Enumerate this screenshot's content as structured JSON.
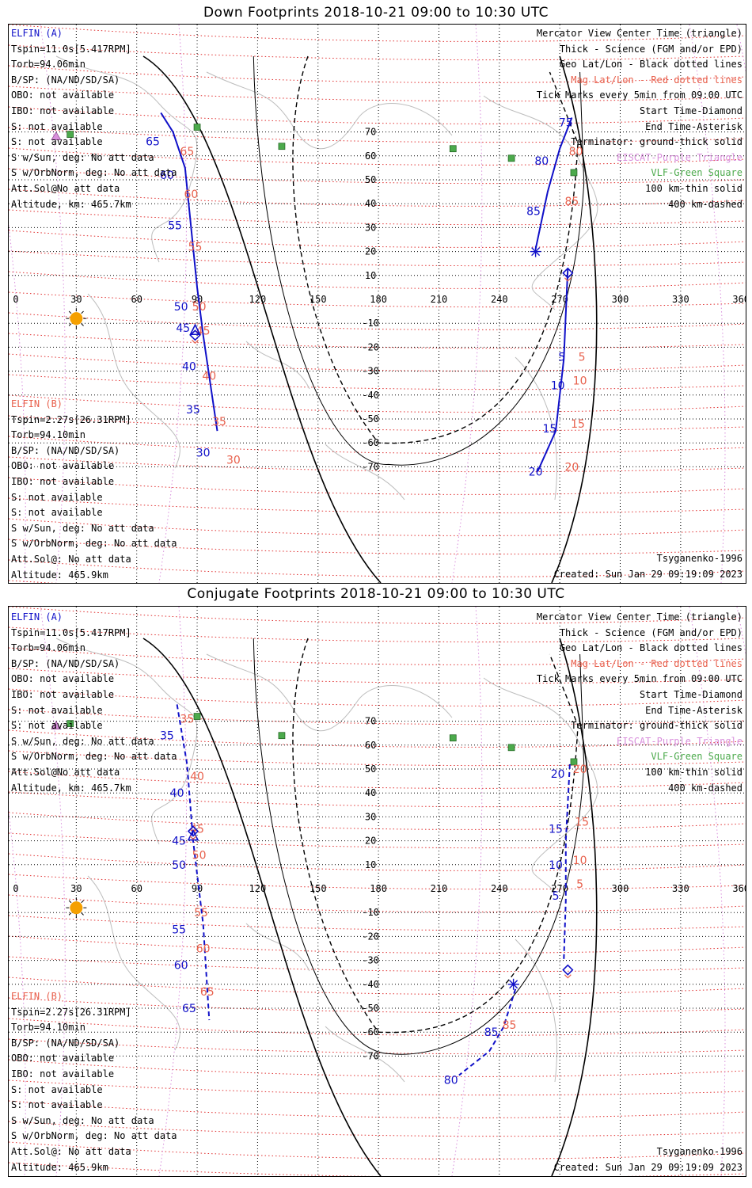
{
  "colors": {
    "blue": "#1010c8",
    "orange": "#e8604c",
    "violet": "#d98fdc",
    "green": "#4caa4c",
    "sun": "#f5a000"
  },
  "footer": {
    "model": "Tsyganenko-1996",
    "created": "Created: Sun Jan 29 09:19:09 2023"
  },
  "info_a": [
    "ELFIN (A)",
    "Tspin=11.0s[5.417RPM]",
    "Torb=94.06min",
    "B/SP: (NA/ND/SD/SA)",
    "OBO: not available",
    "IBO: not available",
    "S: not available",
    "S: not available",
    "S w/Sun, deg: No att data",
    "S w/OrbNorm, deg: No att data",
    "Att.Sol@No att data",
    "Altitude, km: 465.7km"
  ],
  "info_b": [
    "ELFIN (B)",
    "Tspin=2.27s[26.31RPM]",
    "Torb=94.10min",
    "B/SP: (NA/ND/SD/SA)",
    "OBO: not available",
    "IBO: not available",
    "S: not available",
    "S: not available",
    "S w/Sun, deg: No att data",
    "S w/OrbNorm, deg: No att data",
    "Att.Sol@: No att data",
    "Altitude: 465.9km"
  ],
  "legend": [
    "Mercator View Center Time (triangle)",
    "Thick - Science (FGM and/or EPD)",
    "Geo Lat/Lon - Black dotted lines",
    "Mag Lat/Lon - Red dotted lines",
    "Tick Marks every 5min from 09:00 UTC",
    "Start Time-Diamond",
    "End Time-Asterisk",
    "Terminator: ground-thick solid",
    "EISCAT-Purple Triangle",
    "VLF-Green Square",
    "100 km-thin solid",
    "400 km-dashed"
  ],
  "chart_data": [
    {
      "type": "map",
      "title": "Down Footprints 2018-10-21 09:00 to 10:30 UTC",
      "x_ticks": [
        "0",
        "30",
        "60",
        "90",
        "120",
        "150",
        "180",
        "210",
        "240",
        "270",
        "300",
        "330",
        "360"
      ],
      "y_ticks": [
        "70",
        "60",
        "50",
        "40",
        "30",
        "20",
        "10",
        "-10",
        "-20",
        "-30",
        "-40",
        "-50",
        "-60",
        "-70"
      ],
      "vlf_sites": [
        [
          90,
          72
        ],
        [
          27,
          69
        ],
        [
          132,
          64
        ],
        [
          217,
          63
        ],
        [
          246,
          59
        ],
        [
          277,
          53
        ]
      ],
      "eiscat_site": [
        20,
        68
      ],
      "sun": [
        30,
        -8
      ],
      "elfin_a": {
        "track": [
          [
            72,
            78
          ],
          [
            78,
            70
          ],
          [
            84,
            55
          ],
          [
            90,
            5
          ],
          [
            93,
            -15
          ],
          [
            100,
            -55
          ]
        ],
        "blue_ticks": [
          {
            "l": "65",
            "lon": 68,
            "lat": 66
          },
          {
            "l": "60",
            "lon": 75,
            "lat": 52
          },
          {
            "l": "55",
            "lon": 79,
            "lat": 31
          },
          {
            "l": "50",
            "lon": 82,
            "lat": -3
          },
          {
            "l": "45",
            "lon": 83,
            "lat": -12
          },
          {
            "l": "40",
            "lon": 86,
            "lat": -28
          },
          {
            "l": "35",
            "lon": 88,
            "lat": -46
          },
          {
            "l": "30",
            "lon": 93,
            "lat": -64
          }
        ],
        "red_ticks": [
          {
            "l": "65",
            "lon": 85,
            "lat": 62
          },
          {
            "l": "60",
            "lon": 87,
            "lat": 44
          },
          {
            "l": "55",
            "lon": 89,
            "lat": 22
          },
          {
            "l": "50",
            "lon": 91,
            "lat": -3
          },
          {
            "l": "45",
            "lon": 93,
            "lat": -13
          },
          {
            "l": "40",
            "lon": 96,
            "lat": -32
          },
          {
            "l": "35",
            "lon": 101,
            "lat": -51
          },
          {
            "l": "30",
            "lon": 108,
            "lat": -67
          }
        ],
        "triangle": [
          89,
          -13
        ],
        "diamond": [
          89,
          -15
        ]
      },
      "elfin_b": {
        "track": [
          [
            258,
            21
          ],
          [
            264,
            45
          ],
          [
            270,
            63
          ],
          [
            276,
            76
          ]
        ],
        "track2": [
          [
            274,
            13
          ],
          [
            272,
            -25
          ],
          [
            268,
            -55
          ],
          [
            259,
            -72
          ]
        ],
        "blue_ticks": [
          {
            "l": "75",
            "lon": 273,
            "lat": 74
          },
          {
            "l": "80",
            "lon": 261,
            "lat": 58
          },
          {
            "l": "85",
            "lon": 257,
            "lat": 37
          },
          {
            "l": "5",
            "lon": 271,
            "lat": -24
          },
          {
            "l": "10",
            "lon": 269,
            "lat": -36
          },
          {
            "l": "15",
            "lon": 265,
            "lat": -54
          },
          {
            "l": "20",
            "lon": 258,
            "lat": -72
          }
        ],
        "red_ticks": [
          {
            "l": "80",
            "lon": 278,
            "lat": 62
          },
          {
            "l": "85",
            "lon": 276,
            "lat": 41
          },
          {
            "l": "5",
            "lon": 281,
            "lat": -24
          },
          {
            "l": "10",
            "lon": 280,
            "lat": -34
          },
          {
            "l": "15",
            "lon": 279,
            "lat": -52
          },
          {
            "l": "20",
            "lon": 276,
            "lat": -70
          }
        ],
        "asterisk": [
          258,
          20
        ],
        "diamond": [
          274,
          11
        ]
      }
    },
    {
      "type": "map",
      "title": "Conjugate Footprints 2018-10-21 09:00 to 10:30 UTC",
      "x_ticks": [
        "0",
        "30",
        "60",
        "90",
        "120",
        "150",
        "180",
        "210",
        "240",
        "270",
        "300",
        "330",
        "360"
      ],
      "y_ticks": [
        "70",
        "60",
        "50",
        "40",
        "30",
        "20",
        "10",
        "-10",
        "-20",
        "-30",
        "-40",
        "-50",
        "-60",
        "-70"
      ],
      "vlf_sites": [
        [
          90,
          72
        ],
        [
          27,
          69
        ],
        [
          132,
          64
        ],
        [
          217,
          63
        ],
        [
          246,
          59
        ],
        [
          277,
          53
        ]
      ],
      "eiscat_site": [
        20,
        68
      ],
      "sun": [
        30,
        -8
      ],
      "elfin_a": {
        "track": [
          [
            80,
            77
          ],
          [
            85,
            52
          ],
          [
            88,
            20
          ],
          [
            93,
            -15
          ],
          [
            96,
            -55
          ]
        ],
        "blue_ticks": [
          {
            "l": "35",
            "lon": 75,
            "lat": 64
          },
          {
            "l": "40",
            "lon": 80,
            "lat": 40
          },
          {
            "l": "45",
            "lon": 81,
            "lat": 20
          },
          {
            "l": "50",
            "lon": 81,
            "lat": 10
          },
          {
            "l": "55",
            "lon": 81,
            "lat": -17
          },
          {
            "l": "60",
            "lon": 82,
            "lat": -32
          },
          {
            "l": "65",
            "lon": 86,
            "lat": -50
          }
        ],
        "red_ticks": [
          {
            "l": "35",
            "lon": 85,
            "lat": 71
          },
          {
            "l": "40",
            "lon": 90,
            "lat": 47
          },
          {
            "l": "45",
            "lon": 90,
            "lat": 25
          },
          {
            "l": "50",
            "lon": 91,
            "lat": 14
          },
          {
            "l": "55",
            "lon": 92,
            "lat": -10
          },
          {
            "l": "60",
            "lon": 93,
            "lat": -25
          },
          {
            "l": "65",
            "lon": 95,
            "lat": -43
          }
        ],
        "triangle": [
          88,
          22
        ],
        "diamond": [
          88,
          24
        ]
      },
      "elfin_b": {
        "track": [
          [
            275,
            52
          ],
          [
            273,
            20
          ],
          [
            273,
            -5
          ],
          [
            272,
            -30
          ]
        ],
        "track2": [
          [
            248,
            -42
          ],
          [
            242,
            -58
          ],
          [
            235,
            -68
          ],
          [
            220,
            -78
          ]
        ],
        "blue_ticks": [
          {
            "l": "20",
            "lon": 269,
            "lat": 48
          },
          {
            "l": "15",
            "lon": 268,
            "lat": 25
          },
          {
            "l": "10",
            "lon": 268,
            "lat": 10
          },
          {
            "l": "5",
            "lon": 268,
            "lat": -3
          },
          {
            "l": "85",
            "lon": 236,
            "lat": -60
          },
          {
            "l": "80",
            "lon": 216,
            "lat": -80
          }
        ],
        "red_ticks": [
          {
            "l": "20",
            "lon": 280,
            "lat": 50
          },
          {
            "l": "15",
            "lon": 281,
            "lat": 28
          },
          {
            "l": "10",
            "lon": 280,
            "lat": 12
          },
          {
            "l": "5",
            "lon": 280,
            "lat": 2
          },
          {
            "l": "85",
            "lon": 245,
            "lat": -57
          }
        ],
        "asterisk": [
          247,
          -40
        ],
        "diamond": [
          274,
          -34
        ]
      }
    }
  ]
}
